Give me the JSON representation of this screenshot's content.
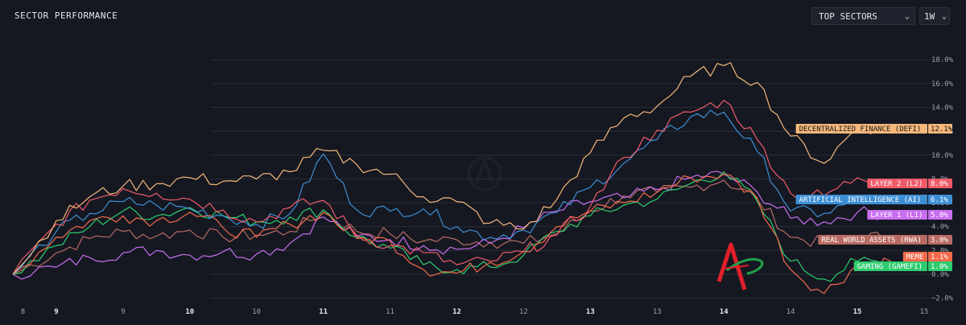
{
  "header": {
    "title": "SECTOR PERFORMANCE",
    "sector_select": "TOP SECTORS",
    "range_select": "1W"
  },
  "icons": {
    "dropdown": "chevron-down-icon",
    "watermark": "logo-watermark",
    "corner_logo": "red-a-logo"
  },
  "colors": {
    "background": "#151821",
    "grid": "#2a2e38"
  },
  "chart_data": {
    "type": "line",
    "title": "",
    "xlabel": "",
    "ylabel": "",
    "ylim": [
      -2.5,
      19.5
    ],
    "y_ticks": [
      "18.0%",
      "16.0%",
      "14.0%",
      "12.0%",
      "10.0%",
      "8.0%",
      "6.0%",
      "4.0%",
      "2.0%",
      "0.0%",
      "−2.0%"
    ],
    "y_tick_values": [
      18,
      16,
      14,
      12,
      10,
      8,
      6,
      4,
      2,
      0,
      -2
    ],
    "x_ticks": [
      {
        "label": "8",
        "t": 0.15,
        "bold": false
      },
      {
        "label": "9",
        "t": 0.65,
        "bold": true
      },
      {
        "label": "9",
        "t": 1.65,
        "bold": false
      },
      {
        "label": "10",
        "t": 2.65,
        "bold": true
      },
      {
        "label": "10",
        "t": 3.65,
        "bold": false
      },
      {
        "label": "11",
        "t": 4.65,
        "bold": true
      },
      {
        "label": "11",
        "t": 5.65,
        "bold": false
      },
      {
        "label": "12",
        "t": 6.65,
        "bold": true
      },
      {
        "label": "12",
        "t": 7.65,
        "bold": false
      },
      {
        "label": "13",
        "t": 8.65,
        "bold": true
      },
      {
        "label": "13",
        "t": 9.65,
        "bold": false
      },
      {
        "label": "14",
        "t": 10.65,
        "bold": true
      },
      {
        "label": "14",
        "t": 11.65,
        "bold": false
      },
      {
        "label": "15",
        "t": 12.65,
        "bold": true
      },
      {
        "label": "15",
        "t": 13.65,
        "bold": false
      }
    ],
    "x_range": [
      0,
      13.65
    ],
    "x_points": [
      0,
      0.65,
      1.15,
      1.65,
      2.15,
      2.65,
      3.15,
      3.65,
      4.15,
      4.65,
      5.15,
      5.65,
      6.15,
      6.65,
      7.15,
      7.65,
      8.15,
      8.65,
      9.15,
      9.65,
      10.15,
      10.65,
      11.15,
      11.65,
      12.15,
      12.65,
      13.15
    ],
    "grid": true,
    "legend": "end-of-line labels",
    "series": [
      {
        "name": "DECENTRALIZED FINANCE (DEFI)",
        "color": "#f5b77a",
        "end_value": "12.1%",
        "values": [
          0,
          4.5,
          6.5,
          7.4,
          7.6,
          8.1,
          7.8,
          8.0,
          8.6,
          10.4,
          9.2,
          8.4,
          6.5,
          6.1,
          4.3,
          3.8,
          6.3,
          10.2,
          13.1,
          14.1,
          16.6,
          17.5,
          16.1,
          11.6,
          9.3,
          12.4,
          12.1
        ]
      },
      {
        "name": "LAYER 2 (L2)",
        "color": "#f05b6a",
        "end_value": "8.0%",
        "values": [
          0,
          4.2,
          6.2,
          7.2,
          6.8,
          6.3,
          5.4,
          4.4,
          5.6,
          6.2,
          3.3,
          2.4,
          1.8,
          0.8,
          1.1,
          1.9,
          3.3,
          5.7,
          9.8,
          12.1,
          13.6,
          14.6,
          11.3,
          6.8,
          6.6,
          8.1,
          8.0
        ]
      },
      {
        "name": "ARTIFICIAL INTELLIGENCE (AI)",
        "color": "#3d8fd6",
        "end_value": "6.1%",
        "values": [
          0,
          3.6,
          5.1,
          6.1,
          5.8,
          5.5,
          4.9,
          4.2,
          5.1,
          10.1,
          5.4,
          5.3,
          5.5,
          4.0,
          3.1,
          3.7,
          5.2,
          7.3,
          9.3,
          11.3,
          13.2,
          13.6,
          10.3,
          5.3,
          5.1,
          6.2,
          6.1
        ]
      },
      {
        "name": "LAYER 1 (L1)",
        "color": "#c96ef0",
        "end_value": "5.0%",
        "values": [
          0,
          0.6,
          1.4,
          1.8,
          2.0,
          1.6,
          1.9,
          1.7,
          2.6,
          4.8,
          3.2,
          2.9,
          2.4,
          2.1,
          2.6,
          3.9,
          5.3,
          6.1,
          6.4,
          7.1,
          8.1,
          8.4,
          6.9,
          4.7,
          4.4,
          5.2,
          5.0
        ]
      },
      {
        "name": "REAL WORLD ASSETS (RWA)",
        "color": "#b86b63",
        "end_value": "3.0%",
        "values": [
          0,
          1.8,
          3.0,
          3.6,
          3.2,
          3.7,
          3.1,
          3.3,
          3.6,
          5.2,
          3.6,
          3.4,
          2.8,
          2.9,
          2.7,
          2.6,
          3.4,
          5.3,
          6.6,
          6.9,
          7.3,
          7.9,
          6.3,
          3.1,
          2.6,
          3.2,
          3.0
        ]
      },
      {
        "name": "MEME",
        "color": "#f26a4b",
        "end_value": "1.1%",
        "values": [
          0,
          3.1,
          4.5,
          4.9,
          4.5,
          5.2,
          3.9,
          3.1,
          4.2,
          5.2,
          3.0,
          2.8,
          0.4,
          0.1,
          1.0,
          1.9,
          4.0,
          5.3,
          6.0,
          6.9,
          8.1,
          8.4,
          6.4,
          0.4,
          -1.6,
          0.8,
          1.1
        ]
      },
      {
        "name": "GAMING (GAMEFI)",
        "color": "#2ecc6f",
        "end_value": "1.0%",
        "values": [
          0,
          2.4,
          4.0,
          5.3,
          4.9,
          5.6,
          4.9,
          4.4,
          4.8,
          5.4,
          3.1,
          2.2,
          0.8,
          0.4,
          0.6,
          1.6,
          3.6,
          4.9,
          5.8,
          6.3,
          7.6,
          8.6,
          6.1,
          1.1,
          -0.4,
          1.1,
          1.0
        ]
      }
    ]
  }
}
